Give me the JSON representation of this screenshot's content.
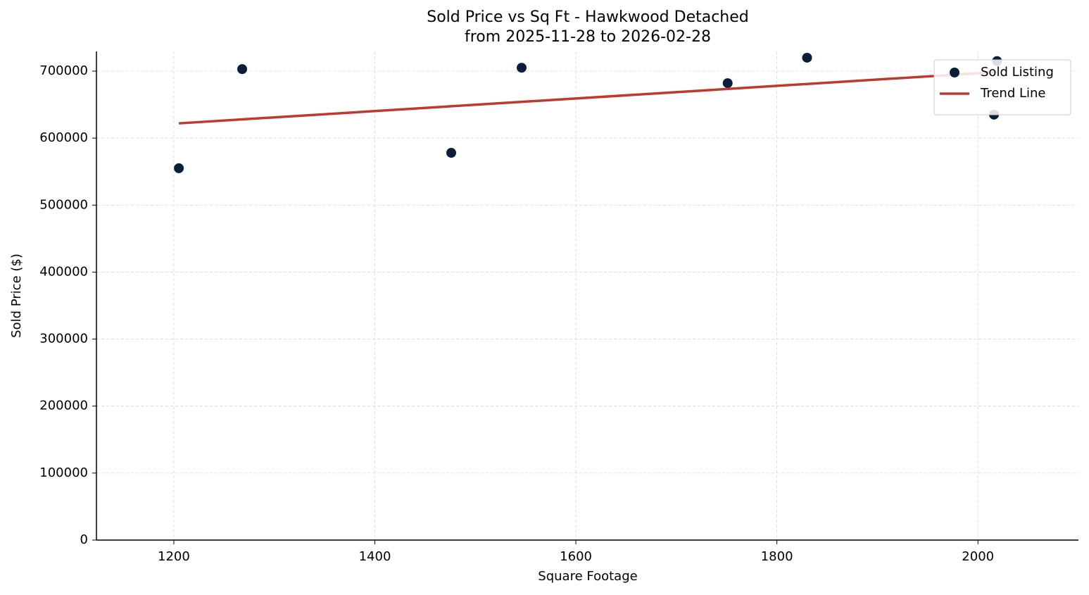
{
  "chart_data": {
    "type": "scatter",
    "title": "Sold Price vs Sq Ft - Hawkwood Detached",
    "subtitle": "from 2025-11-28 to 2026-02-28",
    "x_label": "Square Footage",
    "y_label": "Sold Price ($)",
    "xlim": [
      1123,
      2100
    ],
    "ylim": [
      0,
      729400
    ],
    "xticks": [
      1200,
      1400,
      1600,
      1800,
      2000
    ],
    "yticks": [
      0,
      100000,
      200000,
      300000,
      400000,
      500000,
      600000,
      700000
    ],
    "grid": true,
    "legend": "upper right",
    "series": [
      {
        "name": "Sold Listing",
        "type": "scatter",
        "color": "#0b1f3a",
        "x": [
          1205,
          1268,
          1476,
          1546,
          1751,
          1830,
          2019,
          2016
        ],
        "values": [
          555000,
          703000,
          578000,
          705000,
          682000,
          720000,
          715000,
          635000
        ]
      },
      {
        "name": "Trend Line",
        "type": "line",
        "color": "#c0392b",
        "x": [
          1205,
          2019
        ],
        "values": [
          622000,
          698600
        ]
      }
    ]
  }
}
